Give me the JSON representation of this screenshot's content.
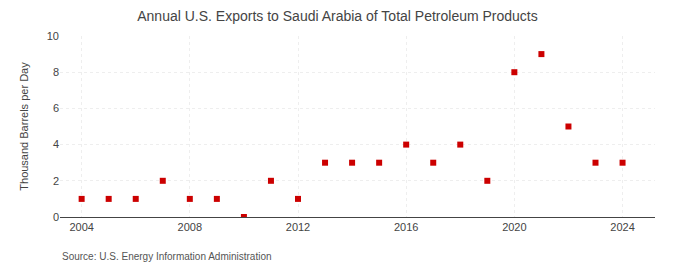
{
  "chart_data": {
    "type": "scatter",
    "title": "Annual U.S. Exports to Saudi Arabia of Total Petroleum Products",
    "ylabel": "Thousand Barrels per Day",
    "source": "Source: U.S. Energy Information Administration",
    "x": [
      2004,
      2005,
      2006,
      2007,
      2008,
      2009,
      2010,
      2011,
      2012,
      2013,
      2014,
      2015,
      2016,
      2017,
      2018,
      2019,
      2020,
      2021,
      2022,
      2023,
      2024
    ],
    "values": [
      1,
      1,
      1,
      2,
      1,
      1,
      0,
      2,
      1,
      3,
      3,
      3,
      4,
      3,
      4,
      2,
      8,
      9,
      5,
      3,
      3
    ],
    "color": "#cc0000",
    "marker": "square",
    "xlim": [
      2003.2,
      2025.2
    ],
    "xticks": [
      2004,
      2008,
      2012,
      2016,
      2020,
      2024
    ],
    "ylim": [
      0,
      10
    ],
    "yticks": [
      0,
      2,
      4,
      6,
      8,
      10
    ],
    "grid": true
  }
}
